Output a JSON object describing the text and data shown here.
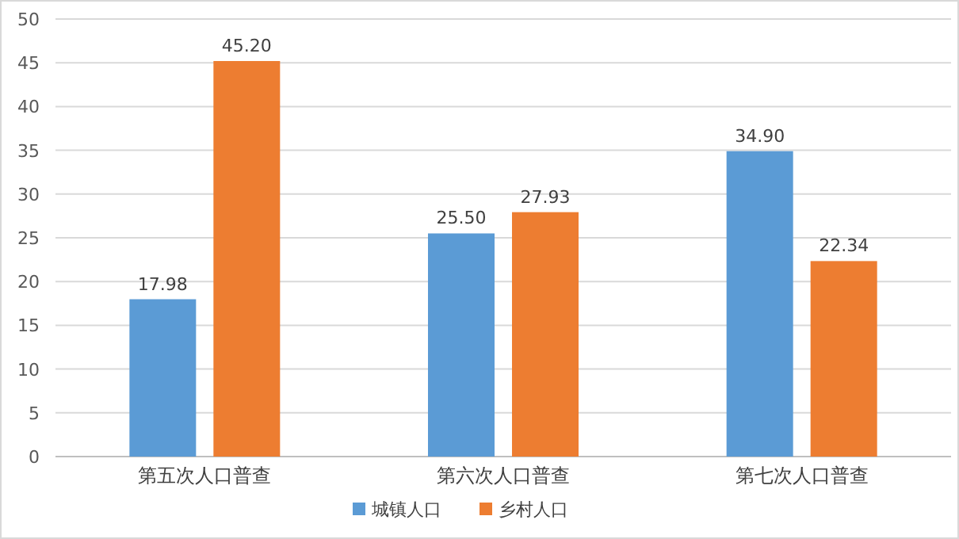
{
  "chart_data": {
    "type": "bar",
    "categories": [
      "第五次人口普查",
      "第六次人口普查",
      "第七次人口普查"
    ],
    "series": [
      {
        "name": "城镇人口",
        "color": "#5b9bd5",
        "values": [
          17.98,
          25.5,
          34.9
        ],
        "value_labels": [
          "17.98",
          "25.50",
          "34.90"
        ]
      },
      {
        "name": "乡村人口",
        "color": "#ed7d31",
        "values": [
          45.2,
          27.93,
          22.34
        ],
        "value_labels": [
          "45.20",
          "27.93",
          "22.34"
        ]
      }
    ],
    "ylim": [
      0,
      50
    ],
    "yticks": [
      0,
      5,
      10,
      15,
      20,
      25,
      30,
      35,
      40,
      45,
      50
    ],
    "grid": "y",
    "legend": "bottom"
  }
}
